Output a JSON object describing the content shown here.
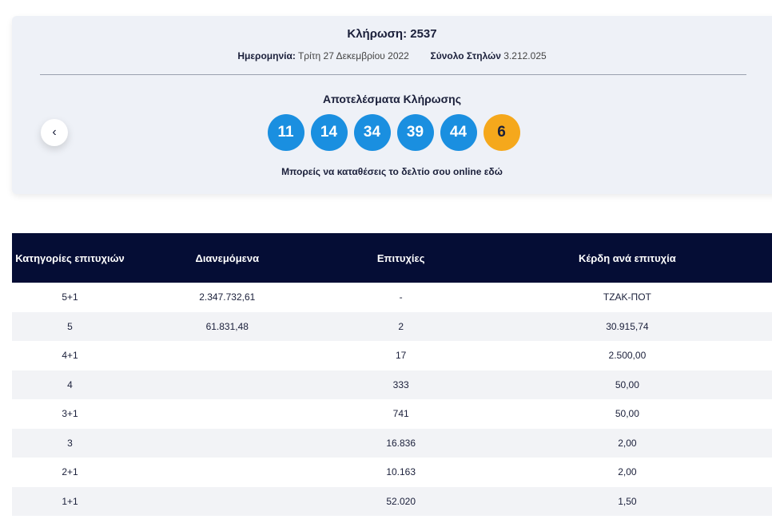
{
  "header": {
    "title": "Κλήρωση: 2537",
    "date_label": "Ημερομηνία:",
    "date_value": "Τρίτη 27 Δεκεμβρίου 2022",
    "total_label": "Σύνολο Στηλών",
    "total_value": "3.212.025"
  },
  "results": {
    "title": "Αποτελέσματα Κλήρωσης",
    "numbers": [
      "11",
      "14",
      "34",
      "39",
      "44"
    ],
    "joker": "6",
    "note": "Μπορείς να καταθέσεις το δελτίο σου online",
    "note_link": "εδώ",
    "prev_button": "‹"
  },
  "table": {
    "columns": [
      "Κατηγορίες επιτυχιών",
      "Διανεμόμενα",
      "Επιτυχίες",
      "Κέρδη ανά επιτυχία"
    ],
    "rows": [
      {
        "category": "5+1",
        "distributed": "2.347.732,61",
        "winners": "-",
        "prize": "ΤΖΑΚ-ΠΟΤ"
      },
      {
        "category": "5",
        "distributed": "61.831,48",
        "winners": "2",
        "prize": "30.915,74"
      },
      {
        "category": "4+1",
        "winners": "17",
        "prize": "2.500,00"
      },
      {
        "category": "4",
        "winners": "333",
        "prize": "50,00"
      },
      {
        "category": "3+1",
        "winners": "741",
        "prize": "50,00"
      },
      {
        "category": "3",
        "winners": "16.836",
        "prize": "2,00"
      },
      {
        "category": "2+1",
        "winners": "10.163",
        "prize": "2,00"
      },
      {
        "category": "1+1",
        "winners": "52.020",
        "prize": "1,50"
      }
    ]
  }
}
